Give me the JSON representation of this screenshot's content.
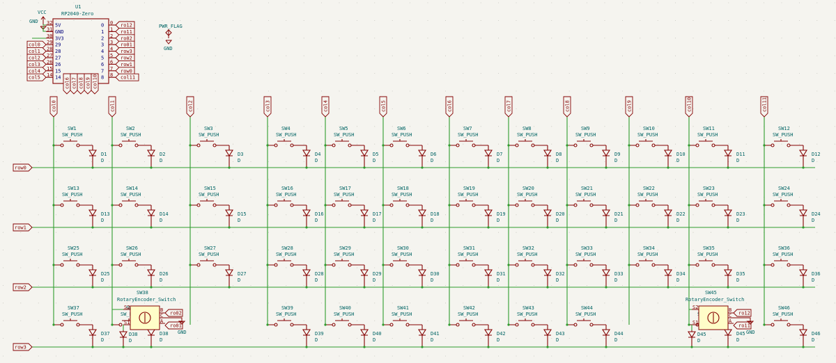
{
  "mcu": {
    "ref": "U1",
    "value": "RP2040-Zero",
    "left_pins": [
      {
        "num": "32",
        "name": "5V"
      },
      {
        "num": "31",
        "name": "GND"
      },
      {
        "num": "30",
        "name": "3V3"
      },
      {
        "num": "29",
        "name": "29"
      },
      {
        "num": "28",
        "name": "28"
      },
      {
        "num": "27",
        "name": "27"
      },
      {
        "num": "26",
        "name": "26"
      },
      {
        "num": "15",
        "name": "15"
      },
      {
        "num": "14",
        "name": "14"
      }
    ],
    "right_pins": [
      {
        "num": "0",
        "name": "0"
      },
      {
        "num": "1",
        "name": "1"
      },
      {
        "num": "2",
        "name": "2"
      },
      {
        "num": "3",
        "name": "3"
      },
      {
        "num": "4",
        "name": "4"
      },
      {
        "num": "5",
        "name": "5"
      },
      {
        "num": "6",
        "name": "6"
      },
      {
        "num": "7",
        "name": "7"
      },
      {
        "num": "8",
        "name": "8"
      }
    ],
    "bottom_pins": [
      "13",
      "12",
      "11",
      "10",
      "9"
    ],
    "left_labels": [
      "col0",
      "col1",
      "col2",
      "col3",
      "col4",
      "col5"
    ],
    "right_labels": [
      "ro12",
      "ro11",
      "ro02",
      "ro01",
      "row3",
      "row2",
      "row1",
      "row0",
      "col11"
    ],
    "bottom_labels": [
      "col6",
      "col7",
      "col8",
      "col9",
      "col10"
    ]
  },
  "power": {
    "vcc": "VCC",
    "gnd": "GND",
    "pwr_flag": "PWR_FLAG"
  },
  "columns": [
    "col0",
    "col1",
    "col2",
    "col3",
    "col4",
    "col5",
    "col6",
    "col7",
    "col8",
    "col9",
    "col10",
    "col11"
  ],
  "rows": [
    "row0",
    "row1",
    "row2",
    "row3"
  ],
  "switch_value": "SW_PUSH",
  "diode_value": "D",
  "switches": [
    {
      "ref": "SW1",
      "diode": "D1"
    },
    {
      "ref": "SW2",
      "diode": "D2"
    },
    {
      "ref": "SW3",
      "diode": "D3"
    },
    {
      "ref": "SW4",
      "diode": "D4"
    },
    {
      "ref": "SW5",
      "diode": "D5"
    },
    {
      "ref": "SW6",
      "diode": "D6"
    },
    {
      "ref": "SW7",
      "diode": "D7"
    },
    {
      "ref": "SW8",
      "diode": "D8"
    },
    {
      "ref": "SW9",
      "diode": "D9"
    },
    {
      "ref": "SW10",
      "diode": "D10"
    },
    {
      "ref": "SW11",
      "diode": "D11"
    },
    {
      "ref": "SW12",
      "diode": "D12"
    },
    {
      "ref": "SW13",
      "diode": "D13"
    },
    {
      "ref": "SW14",
      "diode": "D14"
    },
    {
      "ref": "SW15",
      "diode": "D15"
    },
    {
      "ref": "SW16",
      "diode": "D16"
    },
    {
      "ref": "SW17",
      "diode": "D17"
    },
    {
      "ref": "SW18",
      "diode": "D18"
    },
    {
      "ref": "SW19",
      "diode": "D19"
    },
    {
      "ref": "SW20",
      "diode": "D20"
    },
    {
      "ref": "SW21",
      "diode": "D21"
    },
    {
      "ref": "SW22",
      "diode": "D22"
    },
    {
      "ref": "SW23",
      "diode": "D23"
    },
    {
      "ref": "SW24",
      "diode": "D24"
    },
    {
      "ref": "SW25",
      "diode": "D25"
    },
    {
      "ref": "SW26",
      "diode": "D26"
    },
    {
      "ref": "SW27",
      "diode": "D27"
    },
    {
      "ref": "SW28",
      "diode": "D28"
    },
    {
      "ref": "SW29",
      "diode": "D29"
    },
    {
      "ref": "SW30",
      "diode": "D30"
    },
    {
      "ref": "SW31",
      "diode": "D31"
    },
    {
      "ref": "SW32",
      "diode": "D32"
    },
    {
      "ref": "SW33",
      "diode": "D33"
    },
    {
      "ref": "SW34",
      "diode": "D34"
    },
    {
      "ref": "SW35",
      "diode": "D35"
    },
    {
      "ref": "SW36",
      "diode": "D36"
    },
    {
      "ref": "SW37",
      "diode": "D37"
    },
    {
      "ref": "SW38",
      "diode": "D38"
    },
    null,
    {
      "ref": "SW39",
      "diode": "D39"
    },
    {
      "ref": "SW40",
      "diode": "D40"
    },
    {
      "ref": "SW41",
      "diode": "D41"
    },
    {
      "ref": "SW42",
      "diode": "D42"
    },
    {
      "ref": "SW43",
      "diode": "D43"
    },
    {
      "ref": "SW44",
      "diode": "D44"
    },
    null,
    {
      "ref": "SW45",
      "diode": "D45"
    },
    {
      "ref": "SW46",
      "diode": "D46"
    }
  ],
  "encoders": [
    {
      "ref": "SW38",
      "value": "RotaryEncoder_Switch",
      "pins": [
        "S2",
        "S1",
        "B",
        "C",
        "A"
      ],
      "labels": [
        "ro02",
        "ro01"
      ],
      "gnd": "GND"
    },
    {
      "ref": "SW45",
      "value": "RotaryEncoder_Switch",
      "pins": [
        "S2",
        "S1",
        "B",
        "C",
        "A"
      ],
      "labels": [
        "ro12",
        "ro11"
      ],
      "gnd": "GND"
    }
  ]
}
